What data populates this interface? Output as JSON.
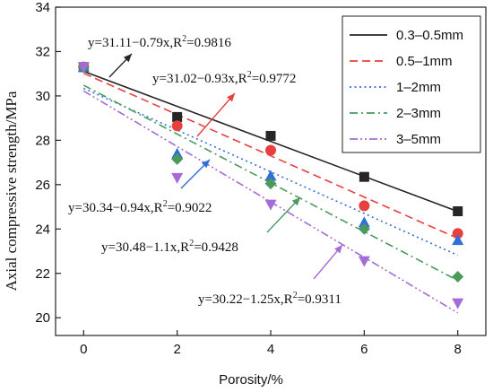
{
  "chart_data": {
    "type": "scatter",
    "xlabel": "Porosity/%",
    "ylabel": "Axial compressive strength/MPa",
    "xlim": [
      -0.6,
      8.6
    ],
    "ylim": [
      19.2,
      34
    ],
    "x_ticks": [
      0,
      2,
      4,
      6,
      8
    ],
    "y_ticks": [
      20,
      22,
      24,
      26,
      28,
      30,
      32,
      34
    ],
    "x": [
      0,
      2,
      4,
      6,
      8
    ],
    "legend_position": "top-right",
    "grid": false,
    "series": [
      {
        "name": "0.3–0.5mm",
        "color": "#262626",
        "dash": "solid",
        "marker": "square",
        "values": [
          31.3,
          29.05,
          28.2,
          26.35,
          24.8
        ],
        "fit": {
          "intercept": 31.11,
          "slope": -0.79
        }
      },
      {
        "name": "0.5–1mm",
        "color": "#e8403e",
        "dash": "dashed",
        "marker": "circle",
        "values": [
          31.3,
          28.65,
          27.55,
          25.05,
          23.8
        ],
        "fit": {
          "intercept": 31.02,
          "slope": -0.93
        }
      },
      {
        "name": "1–2mm",
        "color": "#2f6fd6",
        "dash": "dotted",
        "marker": "triangle-up",
        "values": [
          31.3,
          27.4,
          26.4,
          24.3,
          23.5
        ],
        "fit": {
          "intercept": 30.34,
          "slope": -0.94
        }
      },
      {
        "name": "2–3mm",
        "color": "#4a9a5e",
        "dash": "dashdot",
        "marker": "diamond",
        "values": [
          31.3,
          27.15,
          26.05,
          24.0,
          21.85
        ],
        "fit": {
          "intercept": 30.48,
          "slope": -1.1
        }
      },
      {
        "name": "3–5mm",
        "color": "#a66bd6",
        "dash": "dashdotdot",
        "marker": "triangle-down",
        "values": [
          31.3,
          26.3,
          25.1,
          22.55,
          20.65
        ],
        "fit": {
          "intercept": 30.22,
          "slope": -1.25
        }
      }
    ],
    "annotations": [
      {
        "eq": "y=31.11−0.79x,R",
        "sup": "2",
        "r2": "=0.9816",
        "series": 0
      },
      {
        "eq": "y=31.02−0.93x,R",
        "sup": "2",
        "r2": "=0.9772",
        "series": 1
      },
      {
        "eq": "y=30.34−0.94x,R",
        "sup": "2",
        "r2": "=0.9022",
        "series": 2
      },
      {
        "eq": "y=30.48−1.1x,R",
        "sup": "2",
        "r2": "=0.9428",
        "series": 3
      },
      {
        "eq": "y=30.22−1.25x,R",
        "sup": "2",
        "r2": "=0.9311",
        "series": 4
      }
    ]
  }
}
